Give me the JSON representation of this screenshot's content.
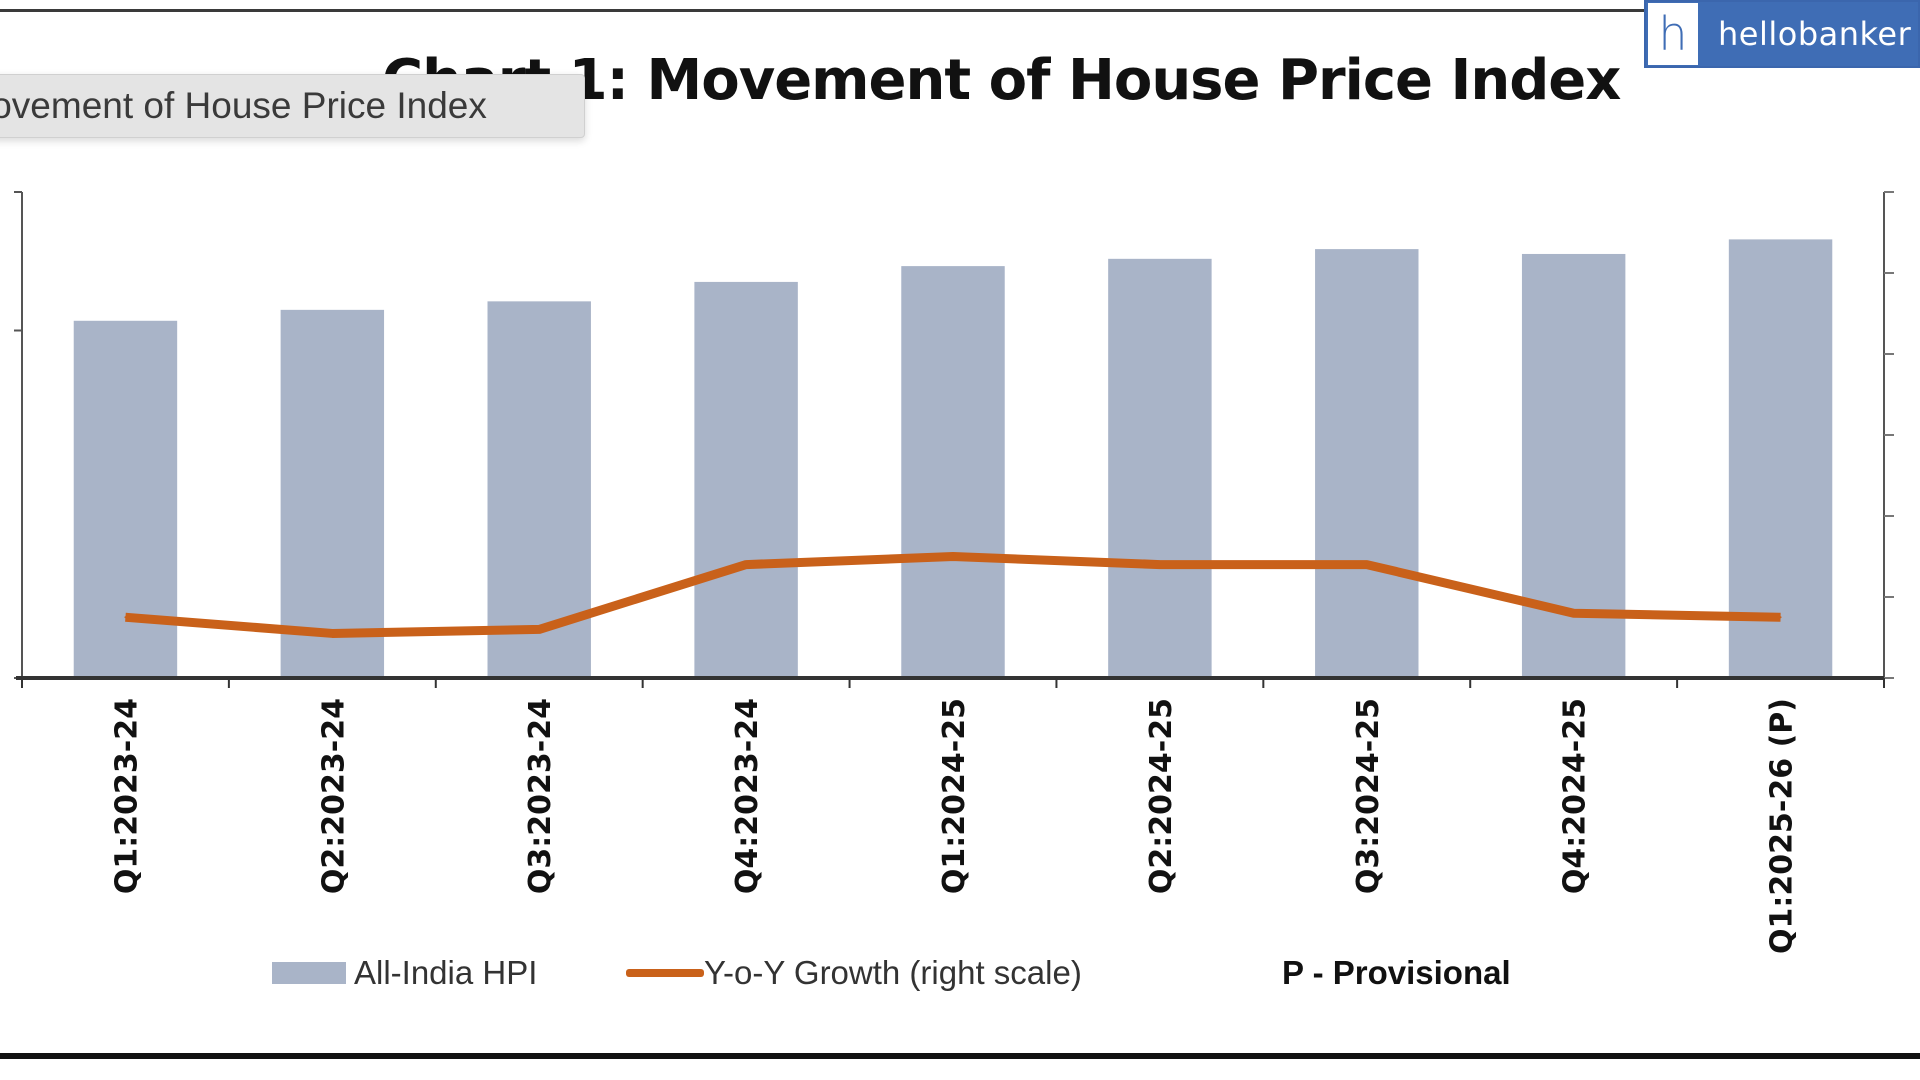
{
  "tooltip": {
    "text": "lovement of House Price Index"
  },
  "logo": {
    "mark": "h",
    "text": "hellobanker",
    "color": "#3f6db5"
  },
  "chart_data": {
    "type": "bar",
    "title": "Chart 1: Movement of House Price Index",
    "categories": [
      "Q1:2023-24",
      "Q2:2023-24",
      "Q3:2023-24",
      "Q4:2023-24",
      "Q1:2024-25",
      "Q2:2024-25",
      "Q3:2024-25",
      "Q4:2024-25",
      "Q1:2025-26 (P)"
    ],
    "series": [
      {
        "name": "All-India HPI",
        "type": "bar",
        "axis": "left",
        "color": "#a9b4c8",
        "values": [
          294,
          303,
          310,
          326,
          339,
          345,
          353,
          349,
          361
        ]
      },
      {
        "name": "Y-o-Y Growth (right scale)",
        "type": "line",
        "axis": "right",
        "color": "#c9611a",
        "values": [
          1.5,
          1.1,
          1.2,
          2.8,
          3.0,
          2.8,
          2.8,
          1.6,
          1.5
        ]
      }
    ],
    "left_axis": {
      "ylim": [
        0,
        400
      ],
      "ticks": [
        0,
        286,
        400
      ],
      "tick_labels_visible": false
    },
    "right_axis": {
      "ylim": [
        0,
        12
      ],
      "ticks": [
        0,
        2,
        4,
        6,
        8,
        10,
        12
      ],
      "tick_labels_visible": false
    },
    "xlabel": "",
    "ylabel": "",
    "grid": false,
    "legend": {
      "placement": "bottom",
      "entries": [
        "All-India HPI",
        "Y-o-Y Growth (right scale)"
      ]
    },
    "annotation": "P - Provisional"
  }
}
